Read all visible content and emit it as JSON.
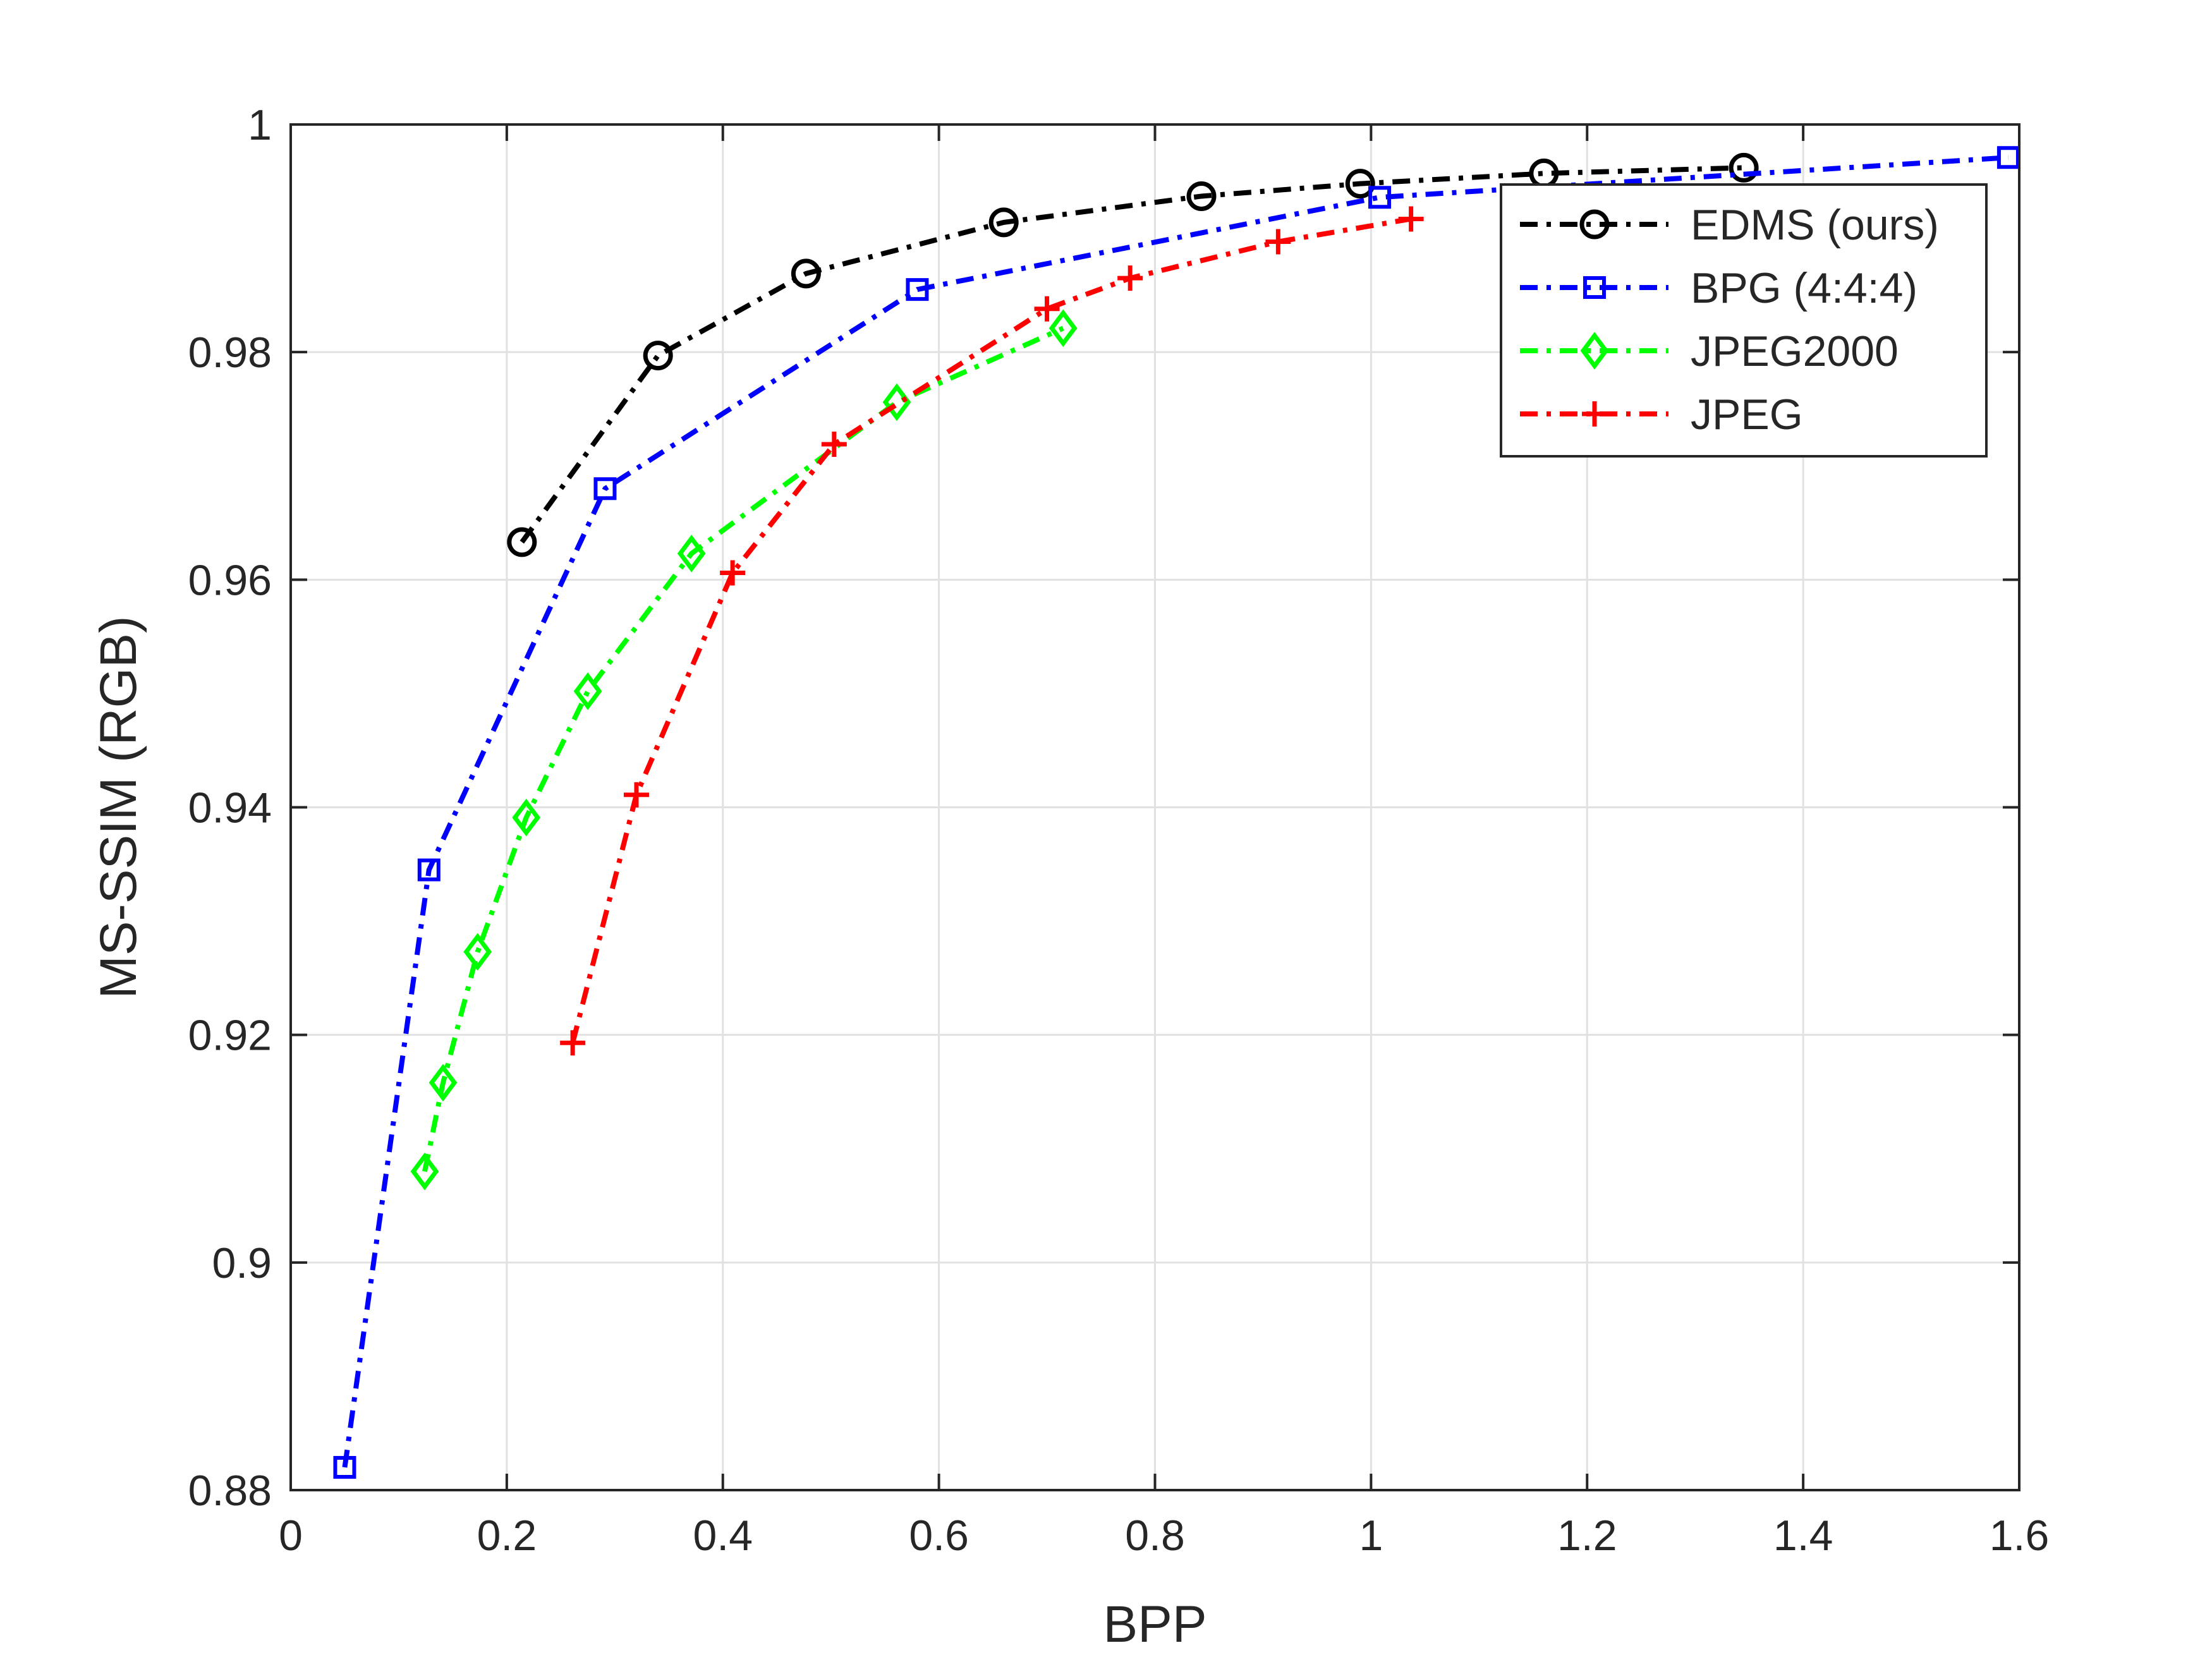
{
  "chart_data": {
    "type": "line",
    "xlabel": "BPP",
    "ylabel": "MS-SSIM (RGB)",
    "xlim": [
      0,
      1.6
    ],
    "ylim": [
      0.88,
      1.0
    ],
    "xticks": [
      0,
      0.2,
      0.4,
      0.6,
      0.8,
      1.0,
      1.2,
      1.4,
      1.6
    ],
    "xtick_labels": [
      "0",
      "0.2",
      "0.4",
      "0.6",
      "0.8",
      "1",
      "1.2",
      "1.4",
      "1.6"
    ],
    "yticks": [
      0.88,
      0.9,
      0.92,
      0.94,
      0.96,
      0.98,
      1.0
    ],
    "ytick_labels": [
      "0.88",
      "0.9",
      "0.92",
      "0.94",
      "0.96",
      "0.98",
      "1"
    ],
    "grid": true,
    "legend_position": "top-right",
    "series": [
      {
        "name": "EDMS (ours)",
        "color": "#000000",
        "marker": "circle",
        "x": [
          0.214,
          0.34,
          0.477,
          0.66,
          0.843,
          0.99,
          1.16,
          1.345
        ],
        "y": [
          0.9633,
          0.9797,
          0.9869,
          0.9914,
          0.9937,
          0.9948,
          0.9957,
          0.9962
        ]
      },
      {
        "name": "BPG (4:4:4)",
        "color": "#0000ff",
        "marker": "square",
        "x": [
          0.05,
          0.128,
          0.291,
          0.58,
          1.008,
          1.59
        ],
        "y": [
          0.882,
          0.9345,
          0.968,
          0.9855,
          0.9936,
          0.9971
        ]
      },
      {
        "name": "JPEG2000",
        "color": "#00ff00",
        "marker": "diamond",
        "x": [
          0.124,
          0.141,
          0.173,
          0.218,
          0.275,
          0.371,
          0.561,
          0.715
        ],
        "y": [
          0.908,
          0.9158,
          0.9273,
          0.9391,
          0.9502,
          0.9623,
          0.9756,
          0.9821
        ]
      },
      {
        "name": "JPEG",
        "color": "#ff0000",
        "marker": "plus",
        "x": [
          0.261,
          0.32,
          0.409,
          0.503,
          0.7,
          0.777,
          0.914,
          1.037
        ],
        "y": [
          0.9193,
          0.9411,
          0.9606,
          0.9719,
          0.9838,
          0.9865,
          0.9897,
          0.9917
        ]
      }
    ]
  }
}
